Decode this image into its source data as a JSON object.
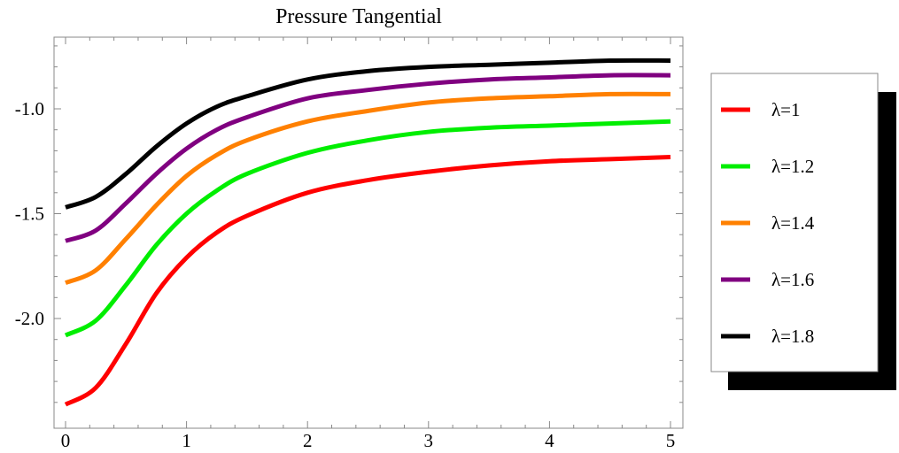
{
  "chart_data": {
    "type": "line",
    "title": "Pressure Tangential",
    "xlabel": "",
    "ylabel": "",
    "xlim": [
      0,
      5
    ],
    "ylim": [
      -2.45,
      -0.67
    ],
    "x_ticks": [
      0,
      1,
      2,
      3,
      4,
      5
    ],
    "y_ticks": [
      -2.0,
      -1.5,
      -1.0
    ],
    "x_tick_labels": [
      "0",
      "1",
      "2",
      "3",
      "4",
      "5"
    ],
    "y_tick_labels": [
      "-2.0",
      "-1.5",
      "-1.0"
    ],
    "grid": false,
    "legend_position": "right",
    "x": [
      0,
      0.25,
      0.5,
      0.75,
      1,
      1.25,
      1.5,
      2,
      2.5,
      3,
      3.5,
      4,
      4.5,
      5
    ],
    "series": [
      {
        "name": "λ=1",
        "color": "#ff0000",
        "values": [
          -2.41,
          -2.33,
          -2.12,
          -1.88,
          -1.71,
          -1.59,
          -1.51,
          -1.4,
          -1.34,
          -1.3,
          -1.27,
          -1.25,
          -1.24,
          -1.23
        ]
      },
      {
        "name": "λ=1.2",
        "color": "#00ee00",
        "values": [
          -2.08,
          -2.01,
          -1.84,
          -1.65,
          -1.5,
          -1.39,
          -1.31,
          -1.21,
          -1.15,
          -1.11,
          -1.09,
          -1.08,
          -1.07,
          -1.06
        ]
      },
      {
        "name": "λ=1.4",
        "color": "#ff8000",
        "values": [
          -1.83,
          -1.77,
          -1.62,
          -1.46,
          -1.32,
          -1.22,
          -1.15,
          -1.06,
          -1.01,
          -0.97,
          -0.95,
          -0.94,
          -0.93,
          -0.93
        ]
      },
      {
        "name": "λ=1.6",
        "color": "#800080",
        "values": [
          -1.63,
          -1.58,
          -1.45,
          -1.31,
          -1.19,
          -1.1,
          -1.04,
          -0.95,
          -0.91,
          -0.88,
          -0.86,
          -0.85,
          -0.84,
          -0.84
        ]
      },
      {
        "name": "λ=1.8",
        "color": "#000000",
        "values": [
          -1.47,
          -1.42,
          -1.31,
          -1.18,
          -1.07,
          -0.99,
          -0.94,
          -0.86,
          -0.82,
          -0.8,
          -0.79,
          -0.78,
          -0.77,
          -0.77
        ]
      }
    ]
  }
}
